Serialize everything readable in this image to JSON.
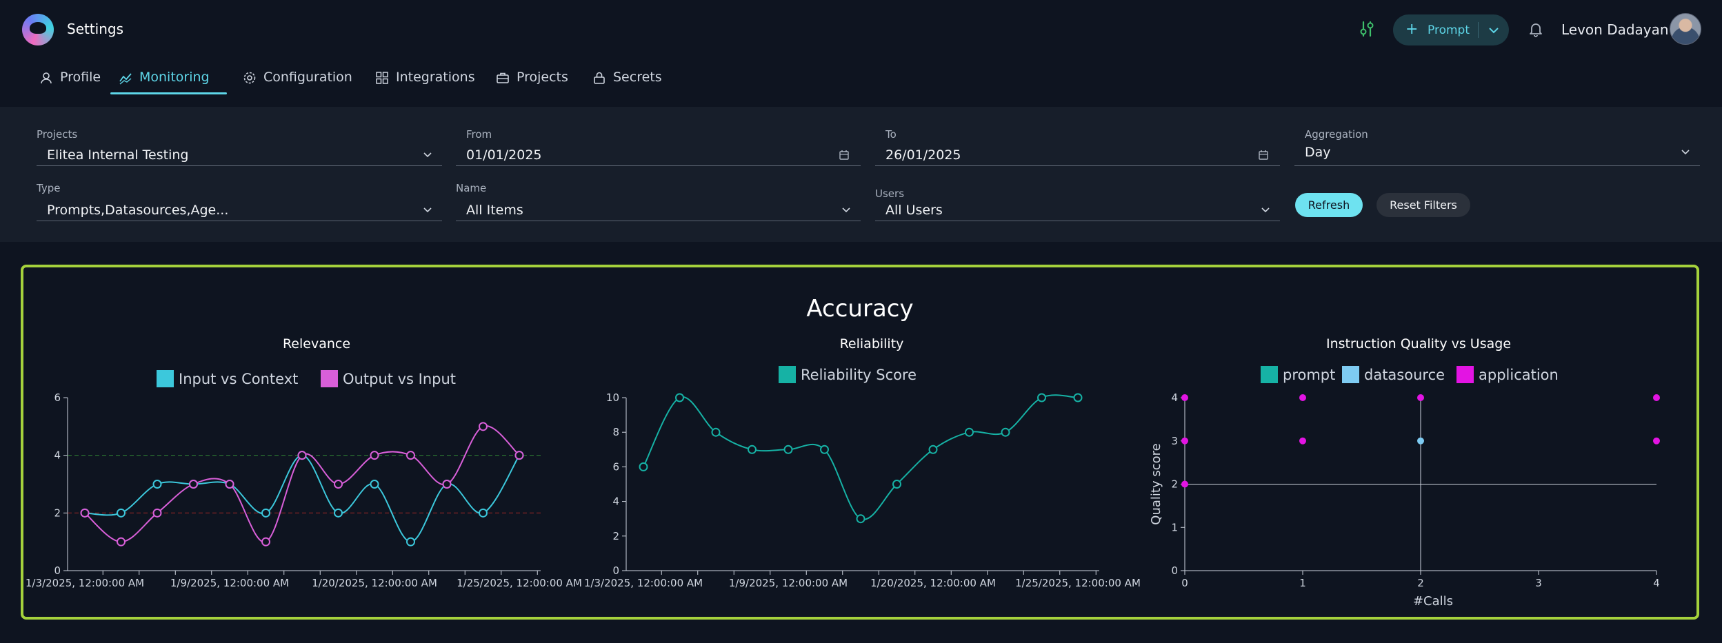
{
  "header": {
    "title": "Settings",
    "prompt_button": "Prompt",
    "user_name": "Levon Dadayan"
  },
  "tabs": [
    {
      "label": "Profile",
      "icon": "user-icon"
    },
    {
      "label": "Monitoring",
      "icon": "monitoring-icon",
      "active": true
    },
    {
      "label": "Configuration",
      "icon": "gear-icon"
    },
    {
      "label": "Integrations",
      "icon": "grid-icon"
    },
    {
      "label": "Projects",
      "icon": "briefcase-icon"
    },
    {
      "label": "Secrets",
      "icon": "lock-icon"
    }
  ],
  "filters": {
    "projects": {
      "label": "Projects",
      "value": "Elitea Internal Testing"
    },
    "from": {
      "label": "From",
      "value": "01/01/2025"
    },
    "to": {
      "label": "To",
      "value": "26/01/2025"
    },
    "aggregation": {
      "label": "Aggregation",
      "value": "Day"
    },
    "type": {
      "label": "Type",
      "value": "Prompts,Datasources,Age..."
    },
    "name": {
      "label": "Name",
      "value": "All Items"
    },
    "users": {
      "label": "Users",
      "value": "All Users"
    },
    "refresh_label": "Refresh",
    "reset_label": "Reset Filters"
  },
  "accuracy": {
    "title": "Accuracy"
  },
  "colors": {
    "accent": "#5ed6e8",
    "panel_border": "#a5d23c",
    "input_vs_context": "#3cc8dc",
    "output_vs_input": "#d95fd9",
    "reliability": "#16b2a5",
    "prompt": "#16b2a5",
    "datasource": "#7ecbf2",
    "application": "#e314e3"
  },
  "chart_data": [
    {
      "type": "line",
      "title": "Relevance",
      "ylim": [
        0,
        6
      ],
      "yticks": [
        0,
        2,
        4,
        6
      ],
      "x_tick_labels": [
        "1/3/2025, 12:00:00 AM",
        "1/9/2025, 12:00:00 AM",
        "1/20/2025, 12:00:00 AM",
        "1/25/2025, 12:00:00 AM"
      ],
      "reference_lines": [
        {
          "y": 4,
          "color": "#2e7d32"
        },
        {
          "y": 2,
          "color": "#8e2424"
        }
      ],
      "series": [
        {
          "name": "Input vs Context",
          "values": [
            2,
            2,
            3,
            3,
            3,
            2,
            4,
            2,
            3,
            1,
            3,
            2,
            4
          ]
        },
        {
          "name": "Output vs Input",
          "values": [
            2,
            1,
            2,
            3,
            3,
            1,
            4,
            3,
            4,
            4,
            3,
            5,
            4
          ]
        }
      ]
    },
    {
      "type": "line",
      "title": "Reliability",
      "ylim": [
        0,
        10
      ],
      "yticks": [
        0,
        2,
        4,
        6,
        8,
        10
      ],
      "x_tick_labels": [
        "1/3/2025, 12:00:00 AM",
        "1/9/2025, 12:00:00 AM",
        "1/20/2025, 12:00:00 AM",
        "1/25/2025, 12:00:00 AM"
      ],
      "series": [
        {
          "name": "Reliability Score",
          "values": [
            6,
            10,
            8,
            7,
            7,
            7,
            3,
            5,
            7,
            8,
            8,
            10,
            10
          ]
        }
      ]
    },
    {
      "type": "scatter",
      "title": "Instruction Quality vs Usage",
      "xlabel": "#Calls",
      "ylabel": "Quality score",
      "xlim": [
        0,
        4
      ],
      "ylim": [
        0,
        4
      ],
      "xticks": [
        0,
        1,
        2,
        3,
        4
      ],
      "yticks": [
        0,
        1,
        2,
        3,
        4
      ],
      "reference_lines": [
        {
          "y": 2
        },
        {
          "x": 2
        }
      ],
      "series": [
        {
          "name": "prompt",
          "points": []
        },
        {
          "name": "datasource",
          "points": [
            [
              2,
              3
            ]
          ]
        },
        {
          "name": "application",
          "points": [
            [
              0,
              4
            ],
            [
              0,
              3
            ],
            [
              0,
              2
            ],
            [
              1,
              4
            ],
            [
              1,
              3
            ],
            [
              2,
              4
            ],
            [
              4,
              4
            ],
            [
              4,
              3
            ]
          ]
        }
      ]
    }
  ]
}
